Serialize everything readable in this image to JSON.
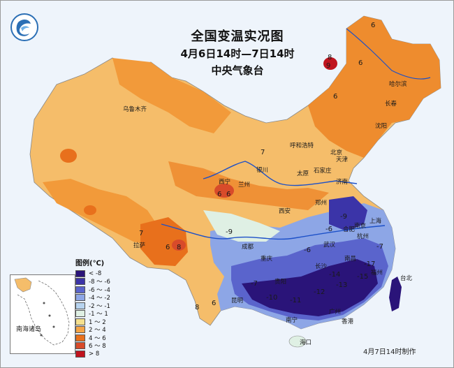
{
  "map": {
    "title": "全国变温实况图",
    "period": "4月6日14时—7日14时",
    "agency": "中央气象台",
    "credit": "4月7日14时制作",
    "inset_label": "南海诸岛"
  },
  "legend": {
    "title": "图例(℃)",
    "items": [
      {
        "label": "< -8",
        "color": "#2a1479"
      },
      {
        "label": "-8 ～ -6",
        "color": "#3b34a8"
      },
      {
        "label": "-6 ～ -4",
        "color": "#5a64cc"
      },
      {
        "label": "-4 ～ -2",
        "color": "#8da6e6"
      },
      {
        "label": "-2 ～ -1",
        "color": "#b7d3ef"
      },
      {
        "label": "-1 ～ 1",
        "color": "#dff0e4"
      },
      {
        "label": "1 ～ 2",
        "color": "#f5e08e"
      },
      {
        "label": "2 ～ 4",
        "color": "#f5a446"
      },
      {
        "label": "4 ～ 6",
        "color": "#e8701c"
      },
      {
        "label": "6 ～ 8",
        "color": "#d84b2a"
      },
      {
        "label": "> 8",
        "color": "#c0141e"
      }
    ]
  },
  "cities": [
    {
      "name": "乌鲁木齐"
    },
    {
      "name": "哈尔滨"
    },
    {
      "name": "长春"
    },
    {
      "name": "沈阳"
    },
    {
      "name": "呼和浩特"
    },
    {
      "name": "北京"
    },
    {
      "name": "天津"
    },
    {
      "name": "银川"
    },
    {
      "name": "太原"
    },
    {
      "name": "石家庄"
    },
    {
      "name": "西宁"
    },
    {
      "name": "兰州"
    },
    {
      "name": "济南"
    },
    {
      "name": "郑州"
    },
    {
      "name": "西安"
    },
    {
      "name": "合肥"
    },
    {
      "name": "南京"
    },
    {
      "name": "上海"
    },
    {
      "name": "杭州"
    },
    {
      "name": "拉萨"
    },
    {
      "name": "成都"
    },
    {
      "name": "武汉"
    },
    {
      "name": "重庆"
    },
    {
      "name": "长沙"
    },
    {
      "name": "南昌"
    },
    {
      "name": "福州"
    },
    {
      "name": "贵阳"
    },
    {
      "name": "昆明"
    },
    {
      "name": "南宁"
    },
    {
      "name": "广州"
    },
    {
      "name": "香港"
    },
    {
      "name": "台北"
    },
    {
      "name": "海口"
    }
  ],
  "values": [
    {
      "v": "6"
    },
    {
      "v": "8"
    },
    {
      "v": "9"
    },
    {
      "v": "6"
    },
    {
      "v": "6"
    },
    {
      "v": "7"
    },
    {
      "v": "6"
    },
    {
      "v": "6"
    },
    {
      "v": "6"
    },
    {
      "v": "8"
    },
    {
      "v": "7"
    },
    {
      "v": "8"
    },
    {
      "v": "-9"
    },
    {
      "v": "-6"
    },
    {
      "v": "-9"
    },
    {
      "v": "-6"
    },
    {
      "v": "-7"
    },
    {
      "v": "-10"
    },
    {
      "v": "-11"
    },
    {
      "v": "-12"
    },
    {
      "v": "-13"
    },
    {
      "v": "-14"
    },
    {
      "v": "-15"
    },
    {
      "v": "-17"
    },
    {
      "v": "-7"
    },
    {
      "v": "6"
    }
  ]
}
